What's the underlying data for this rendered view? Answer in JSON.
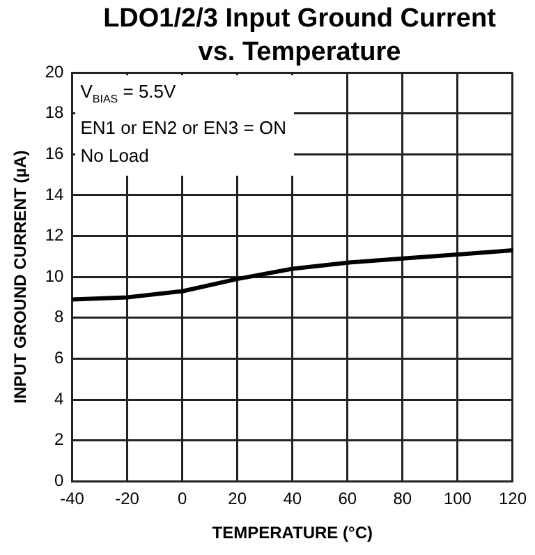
{
  "chart_data": {
    "type": "line",
    "title": "LDO1/2/3 Input Ground Current vs. Temperature",
    "xlabel": "TEMPERATURE (°C)",
    "ylabel": "INPUT GROUND CURRENT (µA)",
    "x": [
      -40,
      -20,
      0,
      20,
      40,
      60,
      80,
      100,
      120
    ],
    "series": [
      {
        "color": "#000000",
        "values": [
          8.9,
          9.0,
          9.3,
          9.9,
          10.4,
          10.7,
          10.9,
          11.1,
          11.3
        ]
      }
    ],
    "xlim": [
      -40,
      120
    ],
    "xticks": [
      -40,
      -20,
      0,
      20,
      40,
      60,
      80,
      100,
      120
    ],
    "ylim": [
      0,
      20
    ],
    "yticks": [
      0,
      2,
      4,
      6,
      8,
      10,
      12,
      14,
      16,
      18,
      20
    ],
    "grid": true,
    "legend": false,
    "marker": "none",
    "line_style": "solid",
    "annotations": [
      "V$_{BIAS}$ = 5.5V",
      "EN1 or EN2 or EN3 = ON",
      "No Load"
    ]
  }
}
